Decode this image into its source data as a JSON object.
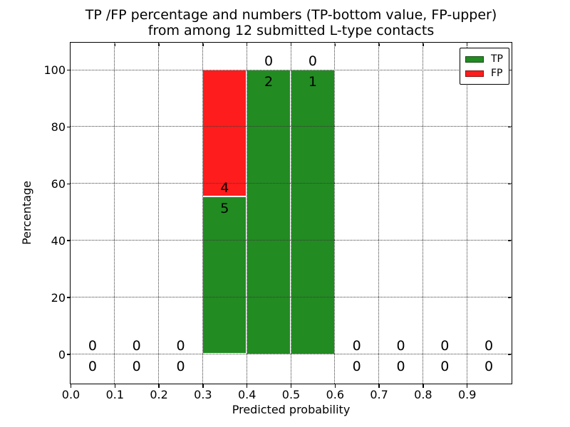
{
  "figure": {
    "title_line1": "TP /FP percentage and numbers (TP-bottom value, FP-upper)",
    "title_line2": "from among 12 submitted L-type contacts",
    "background_color": "#ffffff"
  },
  "axes": {
    "xlabel": "Predicted probability",
    "ylabel": "Percentage",
    "x_tick_labels": [
      "0.0",
      "0.1",
      "0.2",
      "0.3",
      "0.4",
      "0.5",
      "0.6",
      "0.7",
      "0.8",
      "0.9"
    ],
    "x_tick_values": [
      0.0,
      0.1,
      0.2,
      0.3,
      0.4,
      0.5,
      0.6,
      0.7,
      0.8,
      0.9
    ],
    "y_tick_labels": [
      "0",
      "20",
      "40",
      "60",
      "80",
      "100"
    ],
    "y_tick_values": [
      0,
      20,
      40,
      60,
      80,
      100
    ],
    "grid_style": "dotted",
    "grid_color": "#3a3a3a"
  },
  "legend": {
    "position": "upper-right",
    "items": [
      {
        "name": "tp",
        "label": "TP",
        "color": "#228b22"
      },
      {
        "name": "fp",
        "label": "FP",
        "color": "#ff1c1c"
      }
    ]
  },
  "chart_data": {
    "type": "bar",
    "stacked": true,
    "title": "TP /FP percentage and numbers (TP-bottom value, FP-upper) from among 12 submitted L-type contacts",
    "xlabel": "Predicted probability",
    "ylabel": "Percentage",
    "xlim": [
      0.0,
      1.0
    ],
    "ylim": [
      -10.5,
      110
    ],
    "grid": true,
    "legend_position": "upper right",
    "total_contacts": 12,
    "bin_width": 0.1,
    "tp_color": "#228b22",
    "fp_color": "#ff1c1c",
    "bins": [
      {
        "x_start": 0.0,
        "x_end": 0.1,
        "tp_count": 0,
        "fp_count": 0,
        "tp_pct": 0,
        "fp_pct": 0
      },
      {
        "x_start": 0.1,
        "x_end": 0.2,
        "tp_count": 0,
        "fp_count": 0,
        "tp_pct": 0,
        "fp_pct": 0
      },
      {
        "x_start": 0.2,
        "x_end": 0.3,
        "tp_count": 0,
        "fp_count": 0,
        "tp_pct": 0,
        "fp_pct": 0
      },
      {
        "x_start": 0.3,
        "x_end": 0.4,
        "tp_count": 5,
        "fp_count": 4,
        "tp_pct": 55.56,
        "fp_pct": 44.44
      },
      {
        "x_start": 0.4,
        "x_end": 0.5,
        "tp_count": 2,
        "fp_count": 0,
        "tp_pct": 100,
        "fp_pct": 0
      },
      {
        "x_start": 0.5,
        "x_end": 0.6,
        "tp_count": 1,
        "fp_count": 0,
        "tp_pct": 100,
        "fp_pct": 0
      },
      {
        "x_start": 0.6,
        "x_end": 0.7,
        "tp_count": 0,
        "fp_count": 0,
        "tp_pct": 0,
        "fp_pct": 0
      },
      {
        "x_start": 0.7,
        "x_end": 0.8,
        "tp_count": 0,
        "fp_count": 0,
        "tp_pct": 0,
        "fp_pct": 0
      },
      {
        "x_start": 0.8,
        "x_end": 0.9,
        "tp_count": 0,
        "fp_count": 0,
        "tp_pct": 0,
        "fp_pct": 0
      },
      {
        "x_start": 0.9,
        "x_end": 1.0,
        "tp_count": 0,
        "fp_count": 0,
        "tp_pct": 0,
        "fp_pct": 0
      }
    ],
    "series": [
      {
        "name": "TP",
        "color": "#228b22",
        "values": [
          0,
          0,
          0,
          5,
          2,
          1,
          0,
          0,
          0,
          0
        ]
      },
      {
        "name": "FP",
        "color": "#ff1c1c",
        "values": [
          0,
          0,
          0,
          4,
          0,
          0,
          0,
          0,
          0,
          0
        ]
      }
    ]
  }
}
